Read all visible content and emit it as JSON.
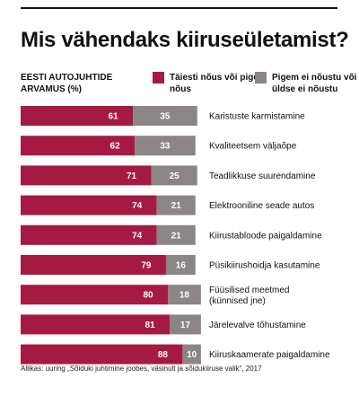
{
  "title": "Mis vähendaks kiiruseületamist?",
  "subtitle": "EESTI AUTOJUHTIDE ARVAMUS (%)",
  "legend": [
    {
      "label": "Täiesti nõus või pigem nõus",
      "color": "#a51a43"
    },
    {
      "label": "Pigem ei nõustu või üldse ei nõustu",
      "color": "#8c8585"
    }
  ],
  "source": "Allikas: uuring „Sõiduki juhtimine joobes, väsinult ja sõidukiiruse valik“, 2017",
  "chart_data": {
    "type": "bar",
    "orientation": "horizontal",
    "stacked": true,
    "title": "Mis vähendaks kiiruseületamist?",
    "subtitle": "EESTI AUTOJUHTIDE ARVAMUS (%)",
    "categories": [
      "Karistuste karmistamine",
      "Kvaliteetsem väljaõpe",
      "Teadlikkuse suurendamine",
      "Elektrooniline seade autos",
      "Kiirustabloode paigaldamine",
      "Püsikiirushoidja kasutamine",
      "Füüsilised meetmed (künnised jne)",
      "Järelevalve tõhustamine",
      "Kiiruskaamerate paigaldamine"
    ],
    "series": [
      {
        "name": "Täiesti nõus või pigem nõus",
        "color": "#a51a43",
        "values": [
          61,
          62,
          71,
          74,
          74,
          79,
          80,
          81,
          88
        ]
      },
      {
        "name": "Pigem ei nõustu või üldse ei nõustu",
        "color": "#8c8585",
        "values": [
          35,
          33,
          25,
          21,
          21,
          16,
          18,
          17,
          10
        ]
      }
    ],
    "xlim": [
      0,
      100
    ],
    "grid": false,
    "legend_position": "top"
  }
}
